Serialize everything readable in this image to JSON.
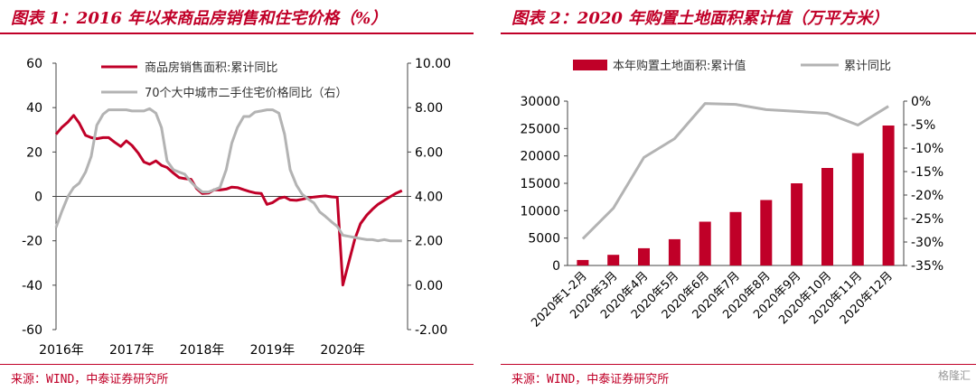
{
  "panels": [
    {
      "title": "图表 1：2016 年以来商品房销售和住宅价格（%）",
      "source": "来源：WIND，中泰证券研究所"
    },
    {
      "title": "图表 2：2020 年购置土地面积累计值（万平方米）",
      "source": "来源：WIND，中泰证券研究所"
    }
  ],
  "watermark": "格隆汇",
  "chart_data": [
    {
      "type": "line",
      "title": "图表 1：2016 年以来商品房销售和住宅价格（%）",
      "x_tick_labels": [
        "2016年",
        "2017年",
        "2018年",
        "2019年",
        "2020年"
      ],
      "x_range": [
        2016.0,
        2021.0
      ],
      "y_left_ticks": [
        "60",
        "40",
        "20",
        "0",
        "-20",
        "-40",
        "-60"
      ],
      "y_left_range": [
        -60,
        60
      ],
      "y_right_ticks": [
        "10.00",
        "8.00",
        "6.00",
        "4.00",
        "2.00",
        "0.00",
        "-2.00"
      ],
      "y_right_range": [
        -2,
        10
      ],
      "legend_position": "top-center",
      "series": [
        {
          "name": "商品房销售面积:累计同比",
          "axis": "left",
          "color": "#c00028",
          "x": [
            2016.0,
            2016.08,
            2016.17,
            2016.25,
            2016.33,
            2016.42,
            2016.5,
            2016.58,
            2016.67,
            2016.75,
            2016.83,
            2016.92,
            2017.0,
            2017.08,
            2017.17,
            2017.25,
            2017.33,
            2017.42,
            2017.5,
            2017.58,
            2017.67,
            2017.75,
            2017.83,
            2017.92,
            2018.0,
            2018.08,
            2018.17,
            2018.25,
            2018.33,
            2018.42,
            2018.5,
            2018.58,
            2018.67,
            2018.75,
            2018.83,
            2018.92,
            2019.0,
            2019.08,
            2019.17,
            2019.25,
            2019.33,
            2019.42,
            2019.5,
            2019.58,
            2019.67,
            2019.75,
            2019.83,
            2019.92,
            2020.0,
            2020.08,
            2020.17,
            2020.25,
            2020.33,
            2020.42,
            2020.5,
            2020.58,
            2020.67,
            2020.75,
            2020.83,
            2020.92
          ],
          "y": [
            28,
            31,
            33.5,
            36.5,
            33,
            27.5,
            26.5,
            26,
            26.5,
            26.5,
            24.5,
            22.5,
            25,
            23,
            19.5,
            15.5,
            14.5,
            16,
            14,
            13,
            10.5,
            8.5,
            8,
            7.7,
            3.5,
            1.3,
            1.5,
            3,
            2.9,
            3.3,
            4.2,
            4,
            3,
            2.2,
            1.6,
            1.3,
            -3.6,
            -2.8,
            -0.9,
            -0.3,
            -1.6,
            -1.8,
            -1.3,
            -0.7,
            -0.3,
            0,
            0.2,
            -0.2,
            -0.4,
            -39.9,
            -29.0,
            -19.3,
            -12.3,
            -8.4,
            -5.8,
            -3.6,
            -1.8,
            -0.2,
            1.3,
            2.6
          ]
        },
        {
          "name": "70个大中城市二手住宅价格同比（右）",
          "axis": "right",
          "color": "#b3b3b3",
          "x": [
            2016.0,
            2016.08,
            2016.17,
            2016.25,
            2016.33,
            2016.42,
            2016.5,
            2016.58,
            2016.67,
            2016.75,
            2016.83,
            2016.92,
            2017.0,
            2017.08,
            2017.17,
            2017.25,
            2017.33,
            2017.42,
            2017.5,
            2017.58,
            2017.67,
            2017.75,
            2017.83,
            2017.92,
            2018.0,
            2018.08,
            2018.17,
            2018.25,
            2018.33,
            2018.42,
            2018.5,
            2018.58,
            2018.67,
            2018.75,
            2018.83,
            2018.92,
            2019.0,
            2019.08,
            2019.17,
            2019.25,
            2019.33,
            2019.42,
            2019.5,
            2019.58,
            2019.67,
            2019.75,
            2019.83,
            2019.92,
            2020.0,
            2020.08,
            2020.17,
            2020.25,
            2020.33,
            2020.42,
            2020.5,
            2020.58,
            2020.67,
            2020.75,
            2020.83,
            2020.92
          ],
          "y": [
            2.6,
            3.3,
            4.0,
            4.4,
            4.6,
            5.1,
            5.8,
            7.2,
            7.7,
            7.9,
            7.9,
            7.9,
            7.9,
            7.85,
            7.85,
            7.85,
            7.95,
            7.75,
            7.1,
            5.6,
            5.2,
            5.1,
            5.0,
            4.65,
            4.4,
            4.2,
            4.2,
            4.3,
            4.4,
            5.2,
            6.4,
            7.1,
            7.6,
            7.6,
            7.8,
            7.85,
            7.9,
            7.9,
            7.75,
            6.8,
            5.2,
            4.5,
            4.1,
            3.9,
            3.7,
            3.3,
            3.1,
            2.85,
            2.65,
            2.25,
            2.2,
            2.15,
            2.1,
            2.05,
            2.05,
            2.0,
            2.05,
            2.0,
            2.0,
            2.0
          ]
        }
      ]
    },
    {
      "type": "bar",
      "title": "图表 2：2020 年购置土地面积累计值（万平方米）",
      "categories": [
        "2020年1-2月",
        "2020年3月",
        "2020年4月",
        "2020年5月",
        "2020年6月",
        "2020年7月",
        "2020年8月",
        "2020年9月",
        "2020年10月",
        "2020年11月",
        "2020年12月"
      ],
      "y_left_ticks": [
        "30000",
        "25000",
        "20000",
        "15000",
        "10000",
        "5000",
        "0"
      ],
      "y_left_range": [
        0,
        30000
      ],
      "y_right_ticks": [
        "0%",
        "-5%",
        "-10%",
        "-15%",
        "-20%",
        "-25%",
        "-30%",
        "-35%"
      ],
      "y_right_range": [
        -35,
        0
      ],
      "legend_position": "top",
      "series": [
        {
          "name": "本年购置土地面积:累计值",
          "type": "bar",
          "axis": "left",
          "color": "#c00028",
          "values": [
            1000,
            1950,
            3150,
            4800,
            8000,
            9750,
            11950,
            15000,
            17800,
            20500,
            25550
          ]
        },
        {
          "name": "累计同比",
          "type": "line",
          "axis": "right",
          "color": "#b3b3b3",
          "values": [
            -29.3,
            -22.8,
            -12.0,
            -8.0,
            -0.5,
            -0.7,
            -1.8,
            -2.2,
            -2.6,
            -5.1,
            -1.1
          ]
        }
      ]
    }
  ]
}
